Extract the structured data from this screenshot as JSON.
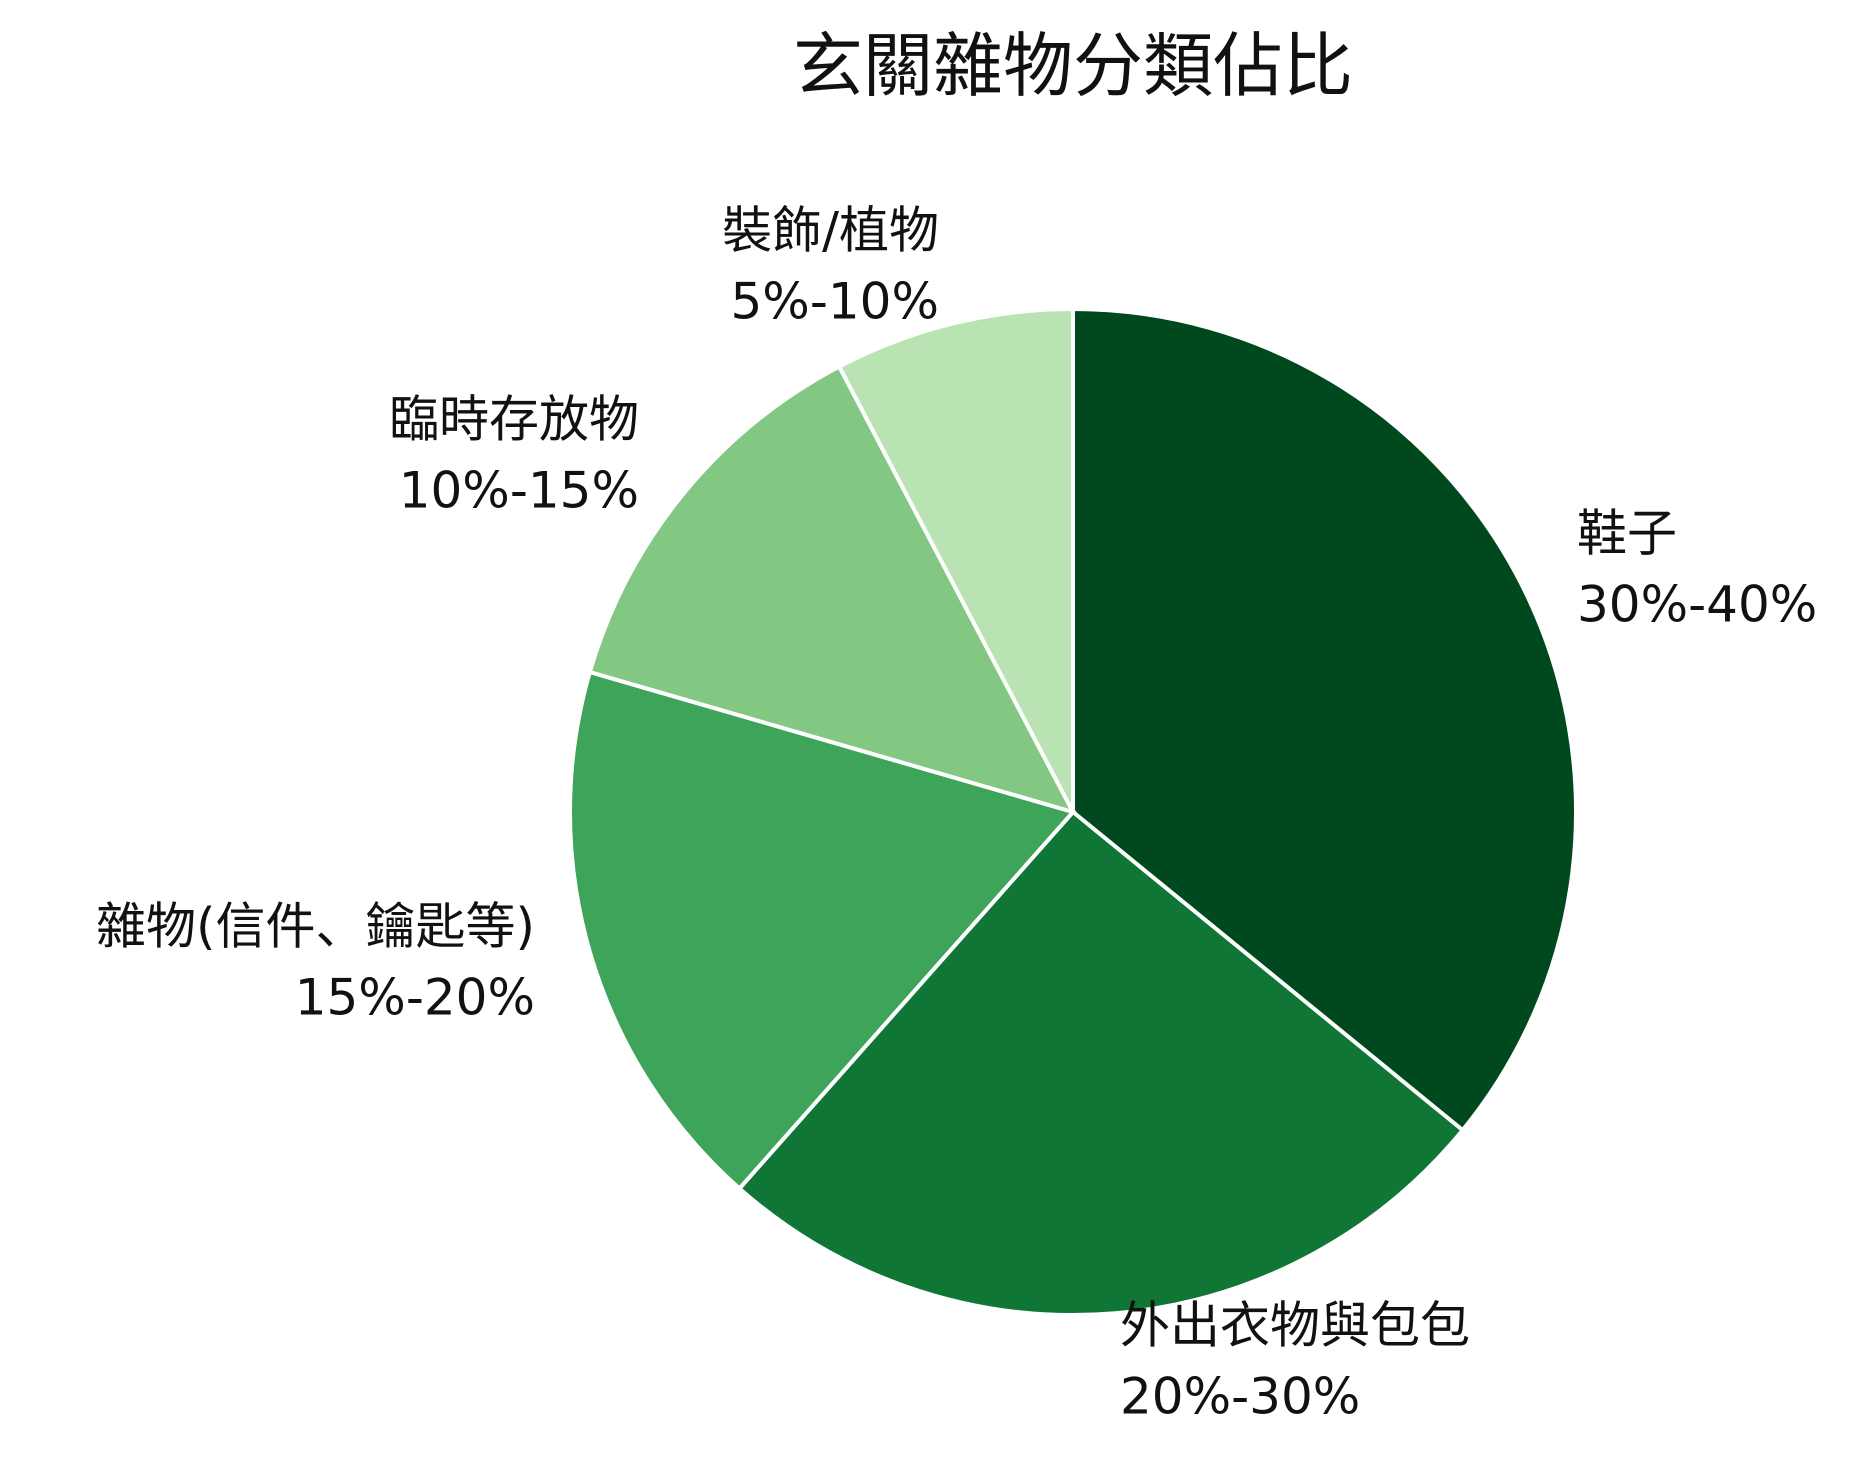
{
  "chart_data": {
    "type": "pie",
    "title": "玄關雜物分類佔比",
    "categories": [
      "鞋子",
      "外出衣物與包包",
      "雜物(信件、鑰匙等)",
      "臨時存放物",
      "裝飾/植物"
    ],
    "values": [
      35,
      25,
      17.5,
      12.5,
      7.5
    ],
    "value_labels": [
      "30%-40%",
      "20%-30%",
      "15%-20%",
      "10%-15%",
      "5%-10%"
    ],
    "colors": [
      "#00491f",
      "#107636",
      "#3da45a",
      "#82c782",
      "#b9e3b2"
    ]
  }
}
